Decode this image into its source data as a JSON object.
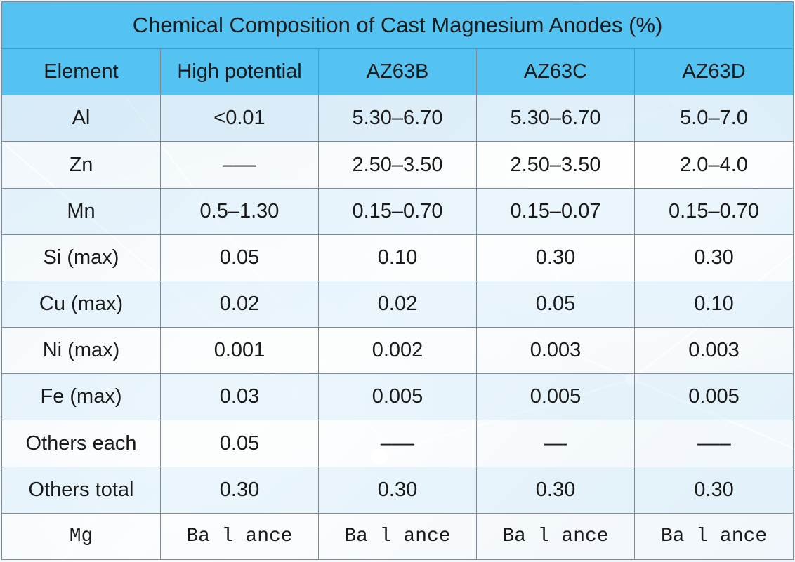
{
  "title": "Chemical Composition of Cast Magnesium Anodes (%)",
  "columns": [
    "Element",
    "High potential",
    "AZ63B",
    "AZ63C",
    "AZ63D"
  ],
  "rows": [
    [
      "Al",
      "<0.01",
      "5.30–6.70",
      "5.30–6.70",
      "5.0–7.0"
    ],
    [
      "Zn",
      "–––",
      "2.50–3.50",
      "2.50–3.50",
      "2.0–4.0"
    ],
    [
      "Mn",
      "0.5–1.30",
      "0.15–0.70",
      "0.15–0.07",
      "0.15–0.70"
    ],
    [
      "Si (max)",
      "0.05",
      "0.10",
      "0.30",
      "0.30"
    ],
    [
      "Cu (max)",
      "0.02",
      "0.02",
      "0.05",
      "0.10"
    ],
    [
      "Ni (max)",
      "0.001",
      "0.002",
      "0.003",
      "0.003"
    ],
    [
      "Fe (max)",
      "0.03",
      "0.005",
      "0.005",
      "0.005"
    ],
    [
      "Others each",
      "0.05",
      "–––",
      "––",
      "–––"
    ],
    [
      "Others total",
      "0.30",
      "0.30",
      "0.30",
      "0.30"
    ],
    [
      "Mg",
      "Ba l ance",
      "Ba l ance",
      "Ba l ance",
      "Ba l ance"
    ]
  ],
  "colors": {
    "header_bg": "#54c3f2",
    "border": "#7d8a96"
  }
}
